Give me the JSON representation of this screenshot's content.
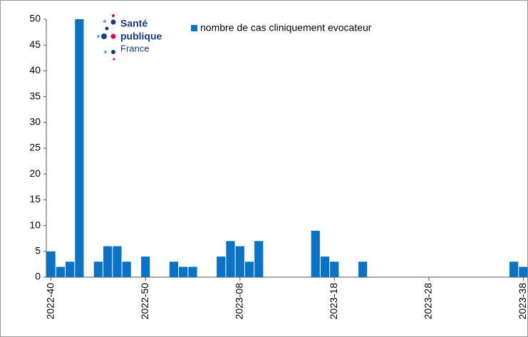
{
  "chart_data": {
    "type": "bar",
    "legend": "nombre de cas cliniquement evocateur",
    "logo": {
      "line1": "Santé",
      "line2": "publique",
      "line3": "France"
    },
    "categories": [
      "2022-40",
      null,
      null,
      null,
      null,
      null,
      null,
      null,
      null,
      null,
      "2022-50",
      null,
      null,
      null,
      null,
      null,
      null,
      null,
      null,
      null,
      "2023-08",
      null,
      null,
      null,
      null,
      null,
      null,
      null,
      null,
      null,
      "2023-18",
      null,
      null,
      null,
      null,
      null,
      null,
      null,
      null,
      null,
      "2023-28",
      null,
      null,
      null,
      null,
      null,
      null,
      null,
      null,
      null,
      "2023-38"
    ],
    "values": [
      5,
      2,
      3,
      50,
      0,
      3,
      6,
      6,
      3,
      0,
      4,
      0,
      0,
      3,
      2,
      2,
      0,
      0,
      4,
      7,
      6,
      3,
      7,
      0,
      0,
      0,
      0,
      0,
      9,
      4,
      3,
      0,
      0,
      3,
      0,
      0,
      0,
      0,
      0,
      0,
      0,
      0,
      0,
      0,
      0,
      0,
      0,
      0,
      0,
      3,
      2
    ],
    "color": "#0b72c4",
    "ylim": [
      0,
      50
    ],
    "yticks": [
      0,
      5,
      10,
      15,
      20,
      25,
      30,
      35,
      40,
      45,
      50
    ],
    "grid": false
  }
}
